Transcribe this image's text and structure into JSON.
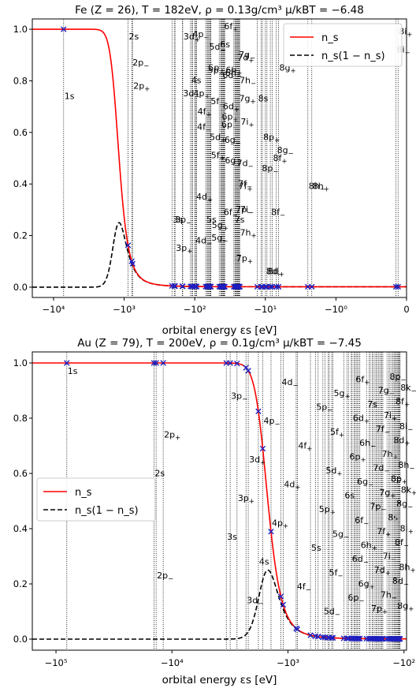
{
  "chart_data": [
    {
      "type": "line",
      "title": "Fe (Z = 26),   T = 182eV,   ρ = 0.13g/cm³  μ/kBT = −6.48",
      "xlabel": "orbital energy εs [eV]",
      "ylabel": "",
      "x_scale": "symlog",
      "xlim": [
        -20000,
        0
      ],
      "ylim": [
        -0.04,
        1.04
      ],
      "x_ticks": [
        -10000,
        -1000,
        -100,
        -10,
        -1,
        0
      ],
      "x_tick_labels": [
        "−10⁴",
        "−10³",
        "−10²",
        "−10¹",
        "−10⁰",
        "0"
      ],
      "y_ticks": [
        0.0,
        0.2,
        0.4,
        0.6,
        0.8,
        1.0
      ],
      "y_tick_labels": [
        "0.0",
        "0.2",
        "0.4",
        "0.6",
        "0.8",
        "1.0"
      ],
      "legend": {
        "position": "top-right",
        "entries": [
          {
            "label": "n_s",
            "style": "solid",
            "color": "#ff0000"
          },
          {
            "label": "n_s(1 − n_s)",
            "style": "dashed",
            "color": "#000000"
          }
        ]
      },
      "mu": -1179,
      "kT": 182,
      "orbitals": [
        {
          "label": "1s",
          "energy": -7200
        },
        {
          "label": "2s",
          "energy": -880
        },
        {
          "label": "2p−",
          "energy": -780
        },
        {
          "label": "2p+",
          "energy": -760
        },
        {
          "label": "3s",
          "energy": -210
        },
        {
          "label": "3p−",
          "energy": -195
        },
        {
          "label": "3p+",
          "energy": -190
        },
        {
          "label": "3d−",
          "energy": -150
        },
        {
          "label": "3d+",
          "energy": -148
        },
        {
          "label": "4s",
          "energy": -115
        },
        {
          "label": "4p−",
          "energy": -110
        },
        {
          "label": "4p+",
          "energy": -107
        },
        {
          "label": "4d−",
          "energy": -100
        },
        {
          "label": "4d+",
          "energy": -98
        },
        {
          "label": "4f−",
          "energy": -95
        },
        {
          "label": "4f+",
          "energy": -94
        },
        {
          "label": "5s",
          "energy": -70
        },
        {
          "label": "5p−",
          "energy": -67
        },
        {
          "label": "5p+",
          "energy": -66
        },
        {
          "label": "5d−",
          "energy": -64
        },
        {
          "label": "5d+",
          "energy": -63
        },
        {
          "label": "5f−",
          "energy": -61
        },
        {
          "label": "5f+",
          "energy": -60.5
        },
        {
          "label": "5g−",
          "energy": -59.5
        },
        {
          "label": "5g+",
          "energy": -59
        },
        {
          "label": "6s",
          "energy": -45
        },
        {
          "label": "6p−",
          "energy": -43
        },
        {
          "label": "6p+",
          "energy": -42.5
        },
        {
          "label": "6d−",
          "energy": -41.5
        },
        {
          "label": "6d+",
          "energy": -41
        },
        {
          "label": "6f−",
          "energy": -40
        },
        {
          "label": "6f+",
          "energy": -39.5
        },
        {
          "label": "6g−",
          "energy": -39
        },
        {
          "label": "6g+",
          "energy": -38.5
        },
        {
          "label": "6h−",
          "energy": -38
        },
        {
          "label": "6h+",
          "energy": -37.5
        },
        {
          "label": "7s",
          "energy": -28
        },
        {
          "label": "7p−",
          "energy": -27
        },
        {
          "label": "7p+",
          "energy": -26.5
        },
        {
          "label": "7d−",
          "energy": -26
        },
        {
          "label": "7d+",
          "energy": -25.5
        },
        {
          "label": "7f−",
          "energy": -25
        },
        {
          "label": "7f+",
          "energy": -24.7
        },
        {
          "label": "7g−",
          "energy": -24.4
        },
        {
          "label": "7g+",
          "energy": -24.1
        },
        {
          "label": "7h−",
          "energy": -23.8
        },
        {
          "label": "7h+",
          "energy": -23.5
        },
        {
          "label": "7i−",
          "energy": -23.2
        },
        {
          "label": "7i+",
          "energy": -23
        },
        {
          "label": "8s",
          "energy": -13
        },
        {
          "label": "8p−",
          "energy": -11.5
        },
        {
          "label": "8p+",
          "energy": -11
        },
        {
          "label": "8d−",
          "energy": -10
        },
        {
          "label": "8d+",
          "energy": -9.5
        },
        {
          "label": "8f−",
          "energy": -8.5
        },
        {
          "label": "8f+",
          "energy": -8
        },
        {
          "label": "8g−",
          "energy": -7
        },
        {
          "label": "8g+",
          "energy": -6.5
        },
        {
          "label": "8h−",
          "energy": -2.5
        },
        {
          "label": "8h+",
          "energy": -2.2
        },
        {
          "label": "8i−",
          "energy": -0.15
        },
        {
          "label": "8i+",
          "energy": -0.12
        }
      ],
      "label_y": {
        "1s": 0.73,
        "2s": 0.96,
        "2p−": 0.86,
        "2p+": 0.77,
        "3d+": 0.96,
        "3d−": 0.74,
        "4p−": 0.97,
        "4s": 0.79,
        "4p+": 0.74,
        "4f+": 0.67,
        "4f−": 0.61,
        "5d−": 0.92,
        "5p+": 0.84,
        "5f−": 0.71,
        "5d+": 0.57,
        "5f+": 0.5,
        "6f+": 1.0,
        "6s": 0.93,
        "6h+": 0.83,
        "6h−": 0.82,
        "6d−": 0.81,
        "6d+": 0.69,
        "6p−": 0.62,
        "6g+": 0.48,
        "7g−": 0.89,
        "7d+": 0.88,
        "7h−": 0.79,
        "7g+": 0.72,
        "7i+": 0.63,
        "7d−": 0.47,
        "7f−": 0.39,
        "7f+": 0.38,
        "7p−": 0.29,
        "7s": 0.25,
        "7h+": 0.2,
        "8i+": 0.98,
        "8i−": 0.91,
        "8s": 0.72,
        "8g+": 0.84,
        "8g−": 0.52,
        "8f+": 0.49,
        "8p−": 0.45,
        "8h+": 0.38,
        "8f−": 0.28,
        "8d−": 0.05,
        "3s": 0.25,
        "3p−": 0.25,
        "3p+": 0.14,
        "4d+": 0.34,
        "4d−": 0.17,
        "5s": 0.25,
        "5g−": 0.18,
        "5g+": 0.23,
        "6f−": 0.28,
        "6h+_2": 0.27,
        "8d+": 0.05,
        "8h−": 0.38
      },
      "label_text_y_order": []
    },
    {
      "type": "line",
      "title": "Au (Z = 79),   T = 200eV,   ρ = 0.1g/cm³  μ/kBT = −7.45",
      "xlabel": "orbital energy εs [eV]",
      "ylabel": "",
      "x_scale": "symlog",
      "xlim": [
        -160000,
        -95
      ],
      "ylim": [
        -0.04,
        1.04
      ],
      "x_ticks": [
        -100000,
        -10000,
        -1000,
        -100
      ],
      "x_tick_labels": [
        "−10⁵",
        "−10⁴",
        "−10³",
        "−10²"
      ],
      "y_ticks": [
        0.0,
        0.2,
        0.4,
        0.6,
        0.8,
        1.0
      ],
      "y_tick_labels": [
        "0.0",
        "0.2",
        "0.4",
        "0.6",
        "0.8",
        "1.0"
      ],
      "legend": {
        "position": "center-left",
        "entries": [
          {
            "label": "n_s",
            "style": "solid",
            "color": "#ff0000"
          },
          {
            "label": "n_s(1 − n_s)",
            "style": "dashed",
            "color": "#000000"
          }
        ]
      },
      "mu": -1490,
      "kT": 200,
      "orbitals": [
        {
          "label": "1s",
          "energy": -80700
        },
        {
          "label": "2s",
          "energy": -14300
        },
        {
          "label": "2p−",
          "energy": -13700
        },
        {
          "label": "2p+",
          "energy": -11900
        },
        {
          "label": "3s",
          "energy": -3400
        },
        {
          "label": "3p−",
          "energy": -3150
        },
        {
          "label": "3p+",
          "energy": -2750
        },
        {
          "label": "3d−",
          "energy": -2300
        },
        {
          "label": "3d+",
          "energy": -2200
        },
        {
          "label": "4s",
          "energy": -1800
        },
        {
          "label": "4p−",
          "energy": -1650
        },
        {
          "label": "4p+",
          "energy": -1400
        },
        {
          "label": "4d−",
          "energy": -1150
        },
        {
          "label": "4d+",
          "energy": -1100
        },
        {
          "label": "4f−",
          "energy": -850
        },
        {
          "label": "4f+",
          "energy": -830
        },
        {
          "label": "5s",
          "energy": -640
        },
        {
          "label": "5p−",
          "energy": -580
        },
        {
          "label": "5p+",
          "energy": -550
        },
        {
          "label": "5d−",
          "energy": -500
        },
        {
          "label": "5d+",
          "energy": -480
        },
        {
          "label": "5f−",
          "energy": -450
        },
        {
          "label": "5f+",
          "energy": -440
        },
        {
          "label": "5g−",
          "energy": -420
        },
        {
          "label": "5g+",
          "energy": -410
        },
        {
          "label": "6s",
          "energy": -330
        },
        {
          "label": "6p−",
          "energy": -310
        },
        {
          "label": "6p+",
          "energy": -300
        },
        {
          "label": "6d−",
          "energy": -285
        },
        {
          "label": "6d+",
          "energy": -280
        },
        {
          "label": "6f−",
          "energy": -270
        },
        {
          "label": "6f+",
          "energy": -265
        },
        {
          "label": "6g−",
          "energy": -258
        },
        {
          "label": "6g+",
          "energy": -252
        },
        {
          "label": "6h−",
          "energy": -246
        },
        {
          "label": "6h+",
          "energy": -240
        },
        {
          "label": "7s",
          "energy": -210
        },
        {
          "label": "7p−",
          "energy": -200
        },
        {
          "label": "7p+",
          "energy": -195
        },
        {
          "label": "7d−",
          "energy": -188
        },
        {
          "label": "7d+",
          "energy": -184
        },
        {
          "label": "7f−",
          "energy": -178
        },
        {
          "label": "7f+",
          "energy": -174
        },
        {
          "label": "7g−",
          "energy": -170
        },
        {
          "label": "7g+",
          "energy": -166
        },
        {
          "label": "7h−",
          "energy": -162
        },
        {
          "label": "7h+",
          "energy": -158
        },
        {
          "label": "7i−",
          "energy": -155
        },
        {
          "label": "7i+",
          "energy": -152
        },
        {
          "label": "8s",
          "energy": -140
        },
        {
          "label": "8p−",
          "energy": -135
        },
        {
          "label": "8p+",
          "energy": -132
        },
        {
          "label": "8d−",
          "energy": -128
        },
        {
          "label": "8d+",
          "energy": -125
        },
        {
          "label": "8f−",
          "energy": -122
        },
        {
          "label": "8f+",
          "energy": -120
        },
        {
          "label": "8g−",
          "energy": -118
        },
        {
          "label": "8g+",
          "energy": -116
        },
        {
          "label": "8h−",
          "energy": -114
        },
        {
          "label": "8h+",
          "energy": -112
        },
        {
          "label": "8i−",
          "energy": -111
        },
        {
          "label": "8i+",
          "energy": -110
        },
        {
          "label": "8k−",
          "energy": -109
        },
        {
          "label": "8k+",
          "energy": -108
        }
      ]
    }
  ]
}
